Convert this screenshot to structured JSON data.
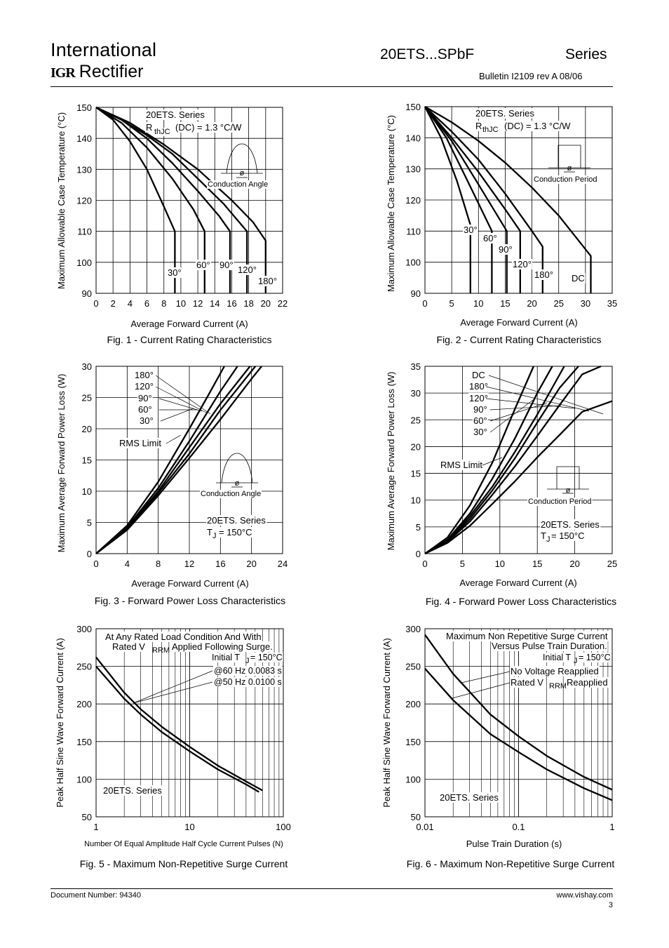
{
  "header": {
    "logo_line1": "International",
    "logo_mark": "IGR",
    "logo_line2": "Rectifier",
    "title": "20ETS...SPbF",
    "series_label": "Series",
    "bulletin": "Bulletin   I2109  rev A   08/06"
  },
  "footer": {
    "doc_number": "Document Number: 94340",
    "website": "www.vishay.com",
    "page": "3"
  },
  "chart_data": [
    {
      "id": "fig1",
      "type": "line",
      "title": "Fig. 1 - Current Rating Characteristics",
      "xlabel": "Average Forward Current (A)",
      "ylabel": "Maximum Allowable Case Temperature (°C)",
      "xlim": [
        0,
        22
      ],
      "ylim": [
        90,
        150
      ],
      "xticks": [
        0,
        2,
        4,
        6,
        8,
        10,
        12,
        14,
        16,
        18,
        20,
        22
      ],
      "yticks": [
        90,
        100,
        110,
        120,
        130,
        140,
        150
      ],
      "grid": true,
      "annotations": [
        "20ETS. Series",
        "R",
        "thJC",
        "(DC) = 1.3 °C/W",
        "Conduction Angle",
        "ø"
      ],
      "series": [
        {
          "name": "30°",
          "x": [
            0,
            2,
            4,
            6,
            8,
            9.3,
            9.3
          ],
          "y": [
            150,
            146,
            139,
            130,
            118,
            110,
            90
          ]
        },
        {
          "name": "60°",
          "x": [
            0,
            3,
            6,
            9,
            11.5,
            12.8,
            12.8
          ],
          "y": [
            150,
            145,
            137,
            127,
            117,
            110,
            90
          ]
        },
        {
          "name": "90°",
          "x": [
            0,
            3,
            6,
            9,
            12,
            14.5,
            15.8,
            15.8
          ],
          "y": [
            150,
            146,
            140,
            132,
            123,
            115,
            110,
            90
          ]
        },
        {
          "name": "120°",
          "x": [
            0,
            3,
            6,
            9,
            12,
            15,
            17.8,
            17.8
          ],
          "y": [
            150,
            146,
            141,
            135,
            127,
            119,
            110,
            90
          ]
        },
        {
          "name": "180°",
          "x": [
            0,
            4,
            8,
            12,
            16,
            18.5,
            20,
            20
          ],
          "y": [
            150,
            145,
            138,
            130,
            120,
            113,
            107,
            90
          ]
        }
      ]
    },
    {
      "id": "fig2",
      "type": "line",
      "title": "Fig. 2 - Current Rating Characteristics",
      "xlabel": "Average Forward Current (A)",
      "ylabel": "Maximum Allowable Case Temperature (°C)",
      "xlim": [
        0,
        35
      ],
      "ylim": [
        90,
        150
      ],
      "xticks": [
        0,
        5,
        10,
        15,
        20,
        25,
        30,
        35
      ],
      "yticks": [
        90,
        100,
        110,
        120,
        130,
        140,
        150
      ],
      "grid": true,
      "annotations": [
        "20ETS. Series",
        "R",
        "thJC",
        "(DC) = 1.3 °C/W",
        "Conduction Period",
        "ø"
      ],
      "series": [
        {
          "name": "30°",
          "x": [
            0,
            3,
            6,
            8.5,
            8.5
          ],
          "y": [
            150,
            140,
            126,
            112,
            90
          ]
        },
        {
          "name": "60°",
          "x": [
            0,
            4,
            8,
            12.5,
            12.5
          ],
          "y": [
            150,
            140,
            126,
            110,
            90
          ]
        },
        {
          "name": "90°",
          "x": [
            0,
            5,
            10,
            15.3,
            15.3
          ],
          "y": [
            150,
            139,
            125,
            110,
            90
          ]
        },
        {
          "name": "120°",
          "x": [
            0,
            5,
            10,
            15,
            17.8,
            17.8
          ],
          "y": [
            150,
            140,
            129,
            117,
            110,
            90
          ]
        },
        {
          "name": "180°",
          "x": [
            0,
            5,
            10,
            15,
            20,
            22,
            22
          ],
          "y": [
            150,
            142,
            133,
            122,
            110,
            105,
            90
          ]
        },
        {
          "name": "DC",
          "x": [
            0,
            5,
            10,
            15,
            20,
            25,
            31,
            31
          ],
          "y": [
            150,
            145,
            139,
            132,
            124,
            115,
            102,
            90
          ]
        }
      ]
    },
    {
      "id": "fig3",
      "type": "line",
      "title": "Fig. 3 - Forward Power Loss Characteristics",
      "xlabel": "Average Forward Current (A)",
      "ylabel": "Maximum Average Forward Power Loss (W)",
      "xlim": [
        0,
        24
      ],
      "ylim": [
        0,
        30
      ],
      "xticks": [
        0,
        4,
        8,
        12,
        16,
        20,
        24
      ],
      "yticks": [
        0,
        5,
        10,
        15,
        20,
        25,
        30
      ],
      "grid": true,
      "annotations": [
        "180°",
        "120°",
        "90°",
        "60°",
        "30°",
        "RMS Limit",
        "Conduction Angle",
        "ø",
        "20ETS. Series",
        "T",
        "J",
        "= 150°C"
      ],
      "series": [
        {
          "name": "30°",
          "x": [
            0,
            4,
            8,
            12,
            14.5,
            16.5
          ],
          "y": [
            0,
            4.5,
            11.5,
            20,
            25.5,
            30
          ]
        },
        {
          "name": "60°",
          "x": [
            0,
            4,
            8,
            12,
            16,
            18.2
          ],
          "y": [
            0,
            4.2,
            10.5,
            18,
            26,
            30
          ]
        },
        {
          "name": "90°",
          "x": [
            0,
            4,
            8,
            12,
            16,
            19.8
          ],
          "y": [
            0,
            4,
            10,
            17,
            24,
            30
          ]
        },
        {
          "name": "120°",
          "x": [
            0,
            4,
            8,
            12,
            16,
            20.5
          ],
          "y": [
            0,
            3.9,
            9.7,
            16,
            23,
            30
          ]
        },
        {
          "name": "180°",
          "x": [
            0,
            4,
            8,
            12,
            16,
            20,
            21.3
          ],
          "y": [
            0,
            3.8,
            9.3,
            15.3,
            21.5,
            28,
            30
          ]
        }
      ]
    },
    {
      "id": "fig4",
      "type": "line",
      "title": "Fig. 4 - Forward Power Loss Characteristics",
      "xlabel": "Average Forward Current (A)",
      "ylabel": "Maximum Average Forward Power Loss (W)",
      "xlim": [
        0,
        25
      ],
      "ylim": [
        0,
        35
      ],
      "xticks": [
        0,
        5,
        10,
        15,
        20,
        25
      ],
      "yticks": [
        0,
        5,
        10,
        15,
        20,
        25,
        30,
        35
      ],
      "grid": true,
      "annotations": [
        "DC",
        "180°",
        "120°",
        "90°",
        "60°",
        "30°",
        "RMS Limit",
        "Conduction Period",
        "ø",
        "20ETS. Series",
        "T",
        "J",
        "= 150°C"
      ],
      "series": [
        {
          "name": "30°",
          "x": [
            0,
            3,
            6,
            9,
            12,
            14.5
          ],
          "y": [
            0,
            3,
            9,
            17,
            27,
            35
          ]
        },
        {
          "name": "60°",
          "x": [
            0,
            3,
            6,
            9,
            12,
            15,
            17
          ],
          "y": [
            0,
            2.6,
            7.5,
            14,
            21.5,
            30,
            35
          ]
        },
        {
          "name": "90°",
          "x": [
            0,
            3,
            6,
            9,
            12,
            15,
            18.6
          ],
          "y": [
            0,
            2.4,
            7,
            12.5,
            19,
            26,
            35
          ]
        },
        {
          "name": "120°",
          "x": [
            0,
            3,
            6,
            9,
            12,
            15,
            18,
            20.5
          ],
          "y": [
            0,
            2.3,
            6.5,
            11.8,
            17.8,
            24.5,
            31,
            35
          ]
        },
        {
          "name": "180°",
          "x": [
            0,
            3,
            6,
            9,
            12,
            15,
            18,
            21,
            23.5
          ],
          "y": [
            0,
            2.2,
            6,
            11,
            16.3,
            22,
            27.8,
            33.5,
            35
          ]
        },
        {
          "name": "DC",
          "x": [
            0,
            3,
            6,
            9,
            12,
            15,
            18,
            21,
            25
          ],
          "y": [
            0,
            2,
            5.2,
            9.3,
            13.5,
            18,
            22.2,
            26.5,
            28.5
          ]
        }
      ]
    },
    {
      "id": "fig5",
      "type": "line",
      "title": "Fig. 5 - Maximum Non-Repetitive Surge Current",
      "xlabel": "Number Of Equal Amplitude Half Cycle Current Pulses (N)",
      "ylabel": "Peak Half Sine Wave Forward Current (A)",
      "xlim": [
        1,
        100
      ],
      "xscale": "log",
      "ylim": [
        50,
        300
      ],
      "xticks": [
        1,
        10,
        100
      ],
      "yticks": [
        50,
        100,
        150,
        200,
        250,
        300
      ],
      "grid": true,
      "annotations": [
        "At Any Rated Load Condition And With",
        "Rated V",
        "RRM",
        "Applied Following Surge.",
        "Initial T",
        "J",
        "= 150°C",
        "@60 Hz 0.0083 s",
        "@50 Hz 0.0100 s",
        "20ETS. Series"
      ],
      "series": [
        {
          "name": "@60 Hz 0.0083 s",
          "x": [
            1,
            2,
            3,
            5,
            10,
            20,
            40,
            60
          ],
          "y": [
            262,
            215,
            193,
            170,
            143,
            118,
            97,
            85
          ]
        },
        {
          "name": "@50 Hz 0.0100 s",
          "x": [
            1,
            2,
            3,
            5,
            10,
            20,
            40,
            55
          ],
          "y": [
            250,
            207,
            186,
            163,
            137,
            113,
            93,
            83
          ]
        }
      ]
    },
    {
      "id": "fig6",
      "type": "line",
      "title": "Fig. 6 - Maximum Non-Repetitive Surge Current",
      "xlabel": "Pulse Train Duration (s)",
      "ylabel": "Peak Half Sine Wave Forward Current (A)",
      "xlim": [
        0.01,
        1
      ],
      "xscale": "log",
      "ylim": [
        50,
        300
      ],
      "xticks": [
        0.01,
        0.1,
        1
      ],
      "yticks": [
        50,
        100,
        150,
        200,
        250,
        300
      ],
      "grid": true,
      "annotations": [
        "Maximum Non Repetitive Surge Current",
        "Versus Pulse Train Duration.",
        "Initial T",
        "J",
        "= 150°C",
        "No Voltage Reapplied",
        "Rated V",
        "RRM",
        "Reapplied",
        "20ETS. Series"
      ],
      "series": [
        {
          "name": "No Voltage Reapplied",
          "x": [
            0.01,
            0.02,
            0.05,
            0.1,
            0.2,
            0.5,
            1
          ],
          "y": [
            292,
            240,
            186,
            157,
            131,
            103,
            86
          ]
        },
        {
          "name": "Rated VRRM Reapplied",
          "x": [
            0.01,
            0.02,
            0.05,
            0.1,
            0.2,
            0.5,
            1
          ],
          "y": [
            247,
            205,
            160,
            136,
            113,
            88,
            72
          ]
        }
      ]
    }
  ]
}
